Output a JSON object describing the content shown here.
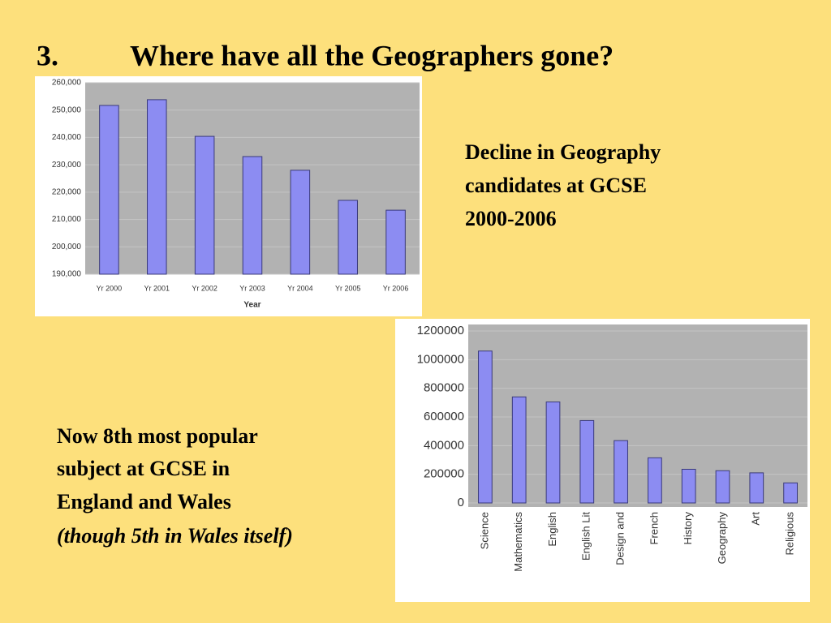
{
  "slide": {
    "number": "3.",
    "title": "Where have all the Geographers gone?",
    "note_right": [
      "Decline in Geography",
      "candidates at GCSE",
      "2000-2006"
    ],
    "note_left": [
      "Now 8th most popular",
      "subject at GCSE in",
      "England and Wales"
    ],
    "note_left_italic": "(though 5th in Wales itself)"
  },
  "chart_data": [
    {
      "type": "bar",
      "x_label": "Year",
      "categories": [
        "Yr 2000",
        "Yr 2001",
        "Yr 2002",
        "Yr 2003",
        "Yr 2004",
        "Yr 2005",
        "Yr 2006"
      ],
      "values": [
        251700,
        253800,
        240400,
        233000,
        228000,
        217000,
        213400
      ],
      "color": "#8c8cf2",
      "ylim": [
        190000,
        260000
      ],
      "yticks": [
        {
          "value": 190000,
          "label": "190,000"
        },
        {
          "value": 200000,
          "label": "200,000"
        },
        {
          "value": 210000,
          "label": "210,000"
        },
        {
          "value": 220000,
          "label": "220,000"
        },
        {
          "value": 230000,
          "label": "230,000"
        },
        {
          "value": 240000,
          "label": "240,000"
        },
        {
          "value": 250000,
          "label": "250,000"
        },
        {
          "value": 260000,
          "label": "260,000"
        }
      ],
      "grid": true
    },
    {
      "type": "bar",
      "categories": [
        "Science",
        "Mathematics",
        "English",
        "English Lit",
        "Design and",
        "French",
        "History",
        "Geography",
        "Art",
        "Religious"
      ],
      "values": [
        1060000,
        740000,
        705000,
        575000,
        435000,
        315000,
        235000,
        225000,
        210000,
        140000
      ],
      "color": "#8c8cf2",
      "ylim": [
        0,
        1200000
      ],
      "yticks": [
        0,
        200000,
        400000,
        600000,
        800000,
        1000000,
        1200000
      ],
      "grid": true
    }
  ]
}
